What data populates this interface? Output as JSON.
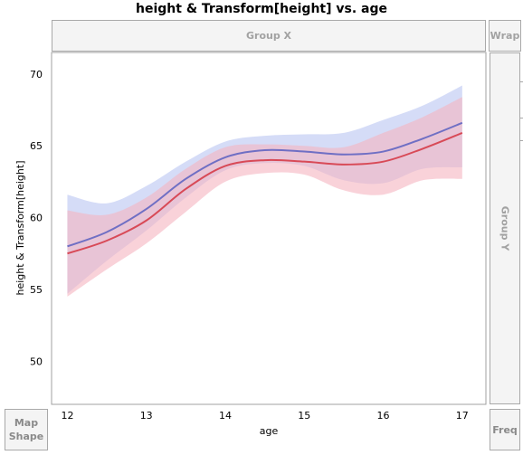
{
  "title": "height & Transform[height] vs. age",
  "drop_zones": {
    "group_x": "Group X",
    "group_y": "Group Y",
    "wrap": "Wrap",
    "map_shape_line1": "Map",
    "map_shape_line2": "Shape",
    "freq": "Freq"
  },
  "chart_data": {
    "type": "line",
    "xlabel": "age",
    "ylabel": "height & Transform[height]",
    "xlim": [
      11.8,
      17.3
    ],
    "ylim": [
      47.0,
      71.5
    ],
    "x_ticks": [
      12,
      13,
      14,
      15,
      16,
      17
    ],
    "y_ticks": [
      50,
      55,
      60,
      65,
      70
    ],
    "grid": false,
    "series": [
      {
        "color": "#6f6fc4",
        "band_color": "#b9c4f2",
        "x": [
          12,
          12.5,
          13,
          13.5,
          14,
          14.5,
          15,
          15.5,
          16,
          16.5,
          17
        ],
        "y": [
          58.0,
          59.0,
          60.6,
          62.7,
          64.2,
          64.7,
          64.6,
          64.4,
          64.6,
          65.5,
          66.6
        ],
        "lower": [
          54.7,
          57.0,
          59.1,
          61.4,
          63.3,
          63.8,
          63.6,
          62.6,
          62.4,
          63.4,
          63.5
        ],
        "upper": [
          61.6,
          61.0,
          62.2,
          63.9,
          65.3,
          65.7,
          65.8,
          65.9,
          66.8,
          67.8,
          69.2
        ]
      },
      {
        "color": "#d84a57",
        "band_color": "#f5b4bf",
        "x": [
          12,
          12.5,
          13,
          13.5,
          14,
          14.5,
          15,
          15.5,
          16,
          16.5,
          17
        ],
        "y": [
          57.5,
          58.4,
          59.8,
          62.0,
          63.6,
          64.0,
          63.9,
          63.7,
          63.9,
          64.8,
          65.9
        ],
        "lower": [
          54.5,
          56.4,
          58.2,
          60.4,
          62.5,
          63.1,
          63.0,
          61.9,
          61.6,
          62.6,
          62.7
        ],
        "upper": [
          60.5,
          60.2,
          61.4,
          63.4,
          64.9,
          65.1,
          65.0,
          64.9,
          65.9,
          67.0,
          68.4
        ]
      }
    ]
  }
}
